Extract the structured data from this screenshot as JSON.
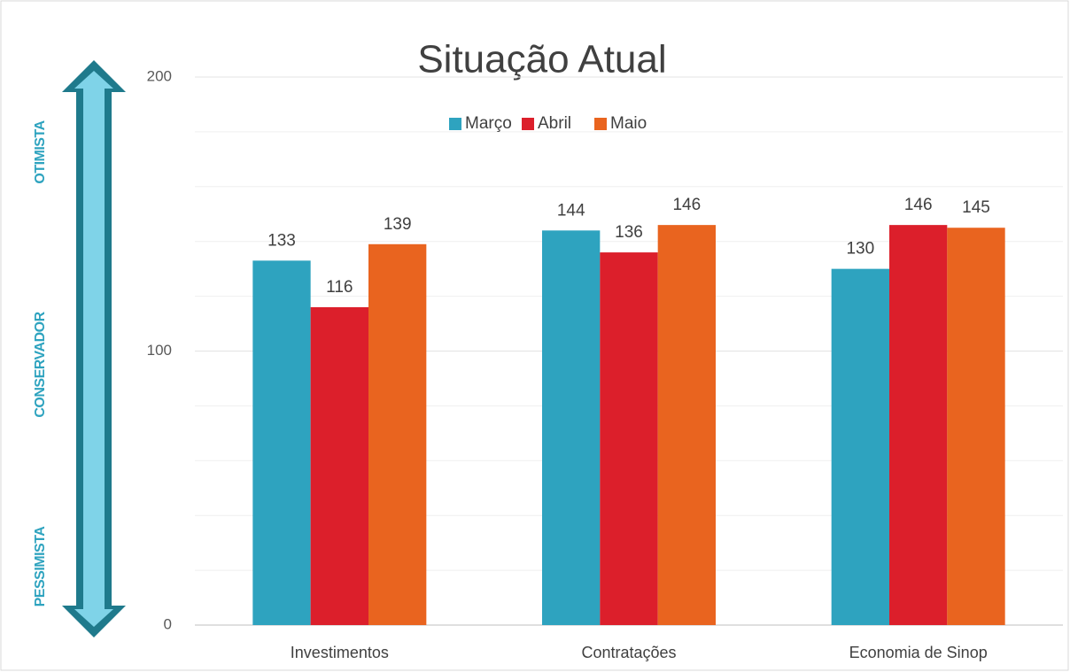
{
  "chart_data": {
    "type": "bar",
    "title": "Situação Atual",
    "categories": [
      "Investimentos",
      "Contratações",
      "Economia de Sinop"
    ],
    "series": [
      {
        "name": "Março",
        "color": "#2ea3bf",
        "values": [
          133,
          144,
          130
        ]
      },
      {
        "name": "Abril",
        "color": "#dc1f2b",
        "values": [
          116,
          136,
          146
        ]
      },
      {
        "name": "Maio",
        "color": "#e9641f",
        "values": [
          139,
          146,
          145
        ]
      }
    ],
    "ylim": [
      0,
      200
    ],
    "yticks": [
      0,
      100,
      200
    ],
    "minor_yticks": [
      20,
      40,
      60,
      80,
      120,
      140,
      160,
      180
    ],
    "grid": true,
    "legend": "top",
    "annotations": [
      "OTIMISTA",
      "CONSERVADOR",
      "PESSIMISTA"
    ]
  }
}
